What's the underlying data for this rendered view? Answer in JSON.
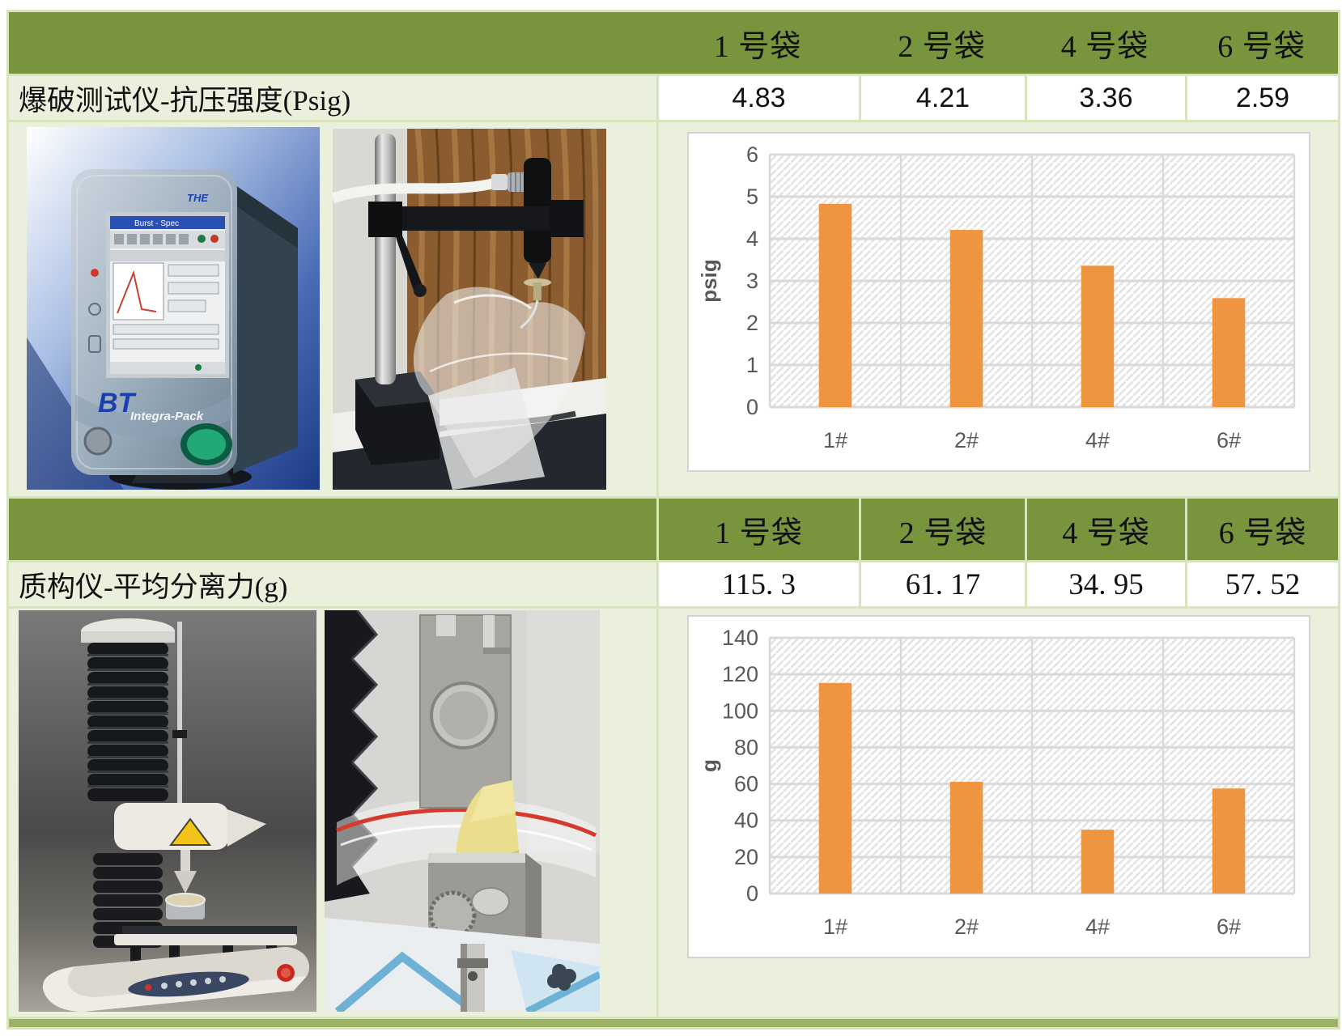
{
  "table": {
    "sections": [
      {
        "header_cols": [
          "1 号袋",
          "2 号袋",
          "4 号袋",
          "6 号袋"
        ],
        "row_label": "爆破测试仪-抗压强度(Psig)",
        "values": [
          "4.83",
          "4.21",
          "3.36",
          "2.59"
        ],
        "photos": [
          "burst-tester-device",
          "burst-test-stand-with-bag"
        ]
      },
      {
        "header_cols": [
          "1 号袋",
          "2 号袋",
          "4 号袋",
          "6 号袋"
        ],
        "row_label": "质构仪-平均分离力(g)",
        "values": [
          "115. 3",
          "61. 17",
          "34. 95",
          "57. 52"
        ],
        "photos": [
          "texture-analyzer-device",
          "grip-closeup-with-bag"
        ]
      }
    ]
  },
  "chart_data": [
    {
      "type": "bar",
      "categories": [
        "1#",
        "2#",
        "4#",
        "6#"
      ],
      "values": [
        4.83,
        4.21,
        3.36,
        2.59
      ],
      "title": "",
      "xlabel": "",
      "ylabel": "psig",
      "ylim": [
        0,
        6
      ],
      "ytick_step": 1,
      "grid": "on",
      "legend": "none",
      "plot_background": "diagonal-hatch"
    },
    {
      "type": "bar",
      "categories": [
        "1#",
        "2#",
        "4#",
        "6#"
      ],
      "values": [
        115.3,
        61.17,
        34.95,
        57.52
      ],
      "title": "",
      "xlabel": "",
      "ylabel": "g",
      "ylim": [
        0,
        140
      ],
      "ytick_step": 20,
      "grid": "on",
      "legend": "none",
      "plot_background": "diagonal-hatch"
    }
  ],
  "colors": {
    "header_green": "#78953E",
    "cell_light_green": "#EAF0DC",
    "border_light_green": "#D7E4BC",
    "bottom_bar_green": "#9CB266",
    "bar_orange": "#F0953F",
    "axis_text_gray": "#595959",
    "gridline_gray": "#D9D9D9",
    "chart_border_gray": "#D3D3D3",
    "text_black": "#111111"
  }
}
